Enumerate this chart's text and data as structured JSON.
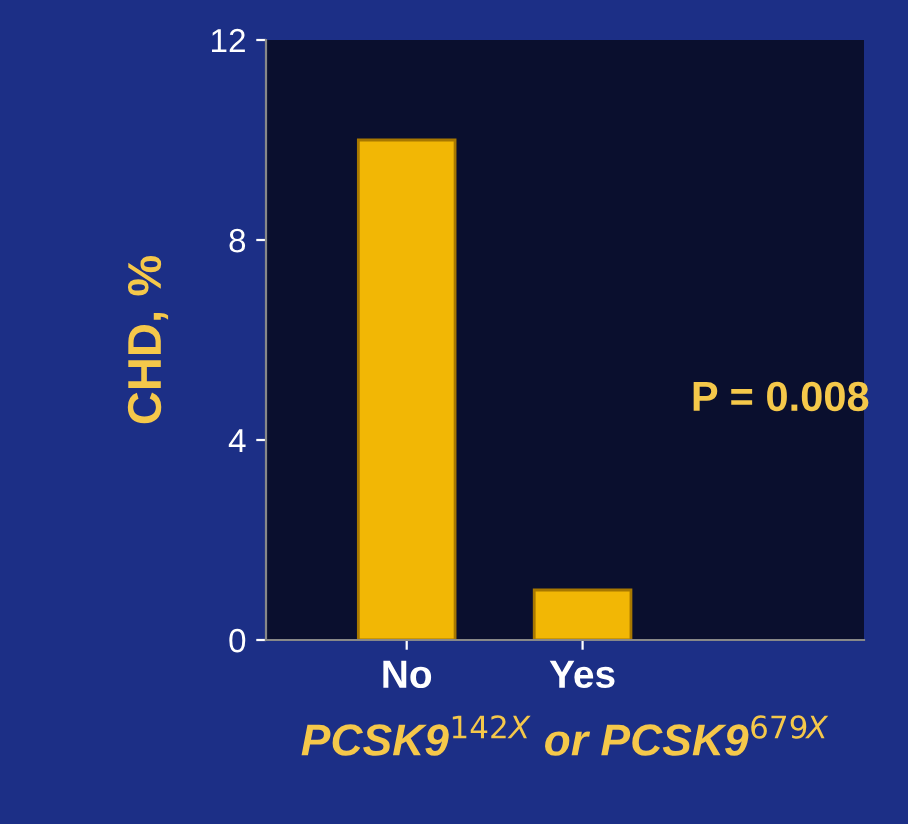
{
  "chart_data": {
    "type": "bar",
    "categories": [
      "No",
      "Yes"
    ],
    "values": [
      10,
      1
    ],
    "color": "#f2b705",
    "ylabel": "CHD, %",
    "xlabel": "PCSK9$^{142X}$ or PCSK9$^{679X}$",
    "ylim": [
      0,
      12
    ],
    "yticks": [
      0,
      4,
      8,
      12
    ],
    "grid": false,
    "annotations": [
      "P = 0.008"
    ]
  }
}
